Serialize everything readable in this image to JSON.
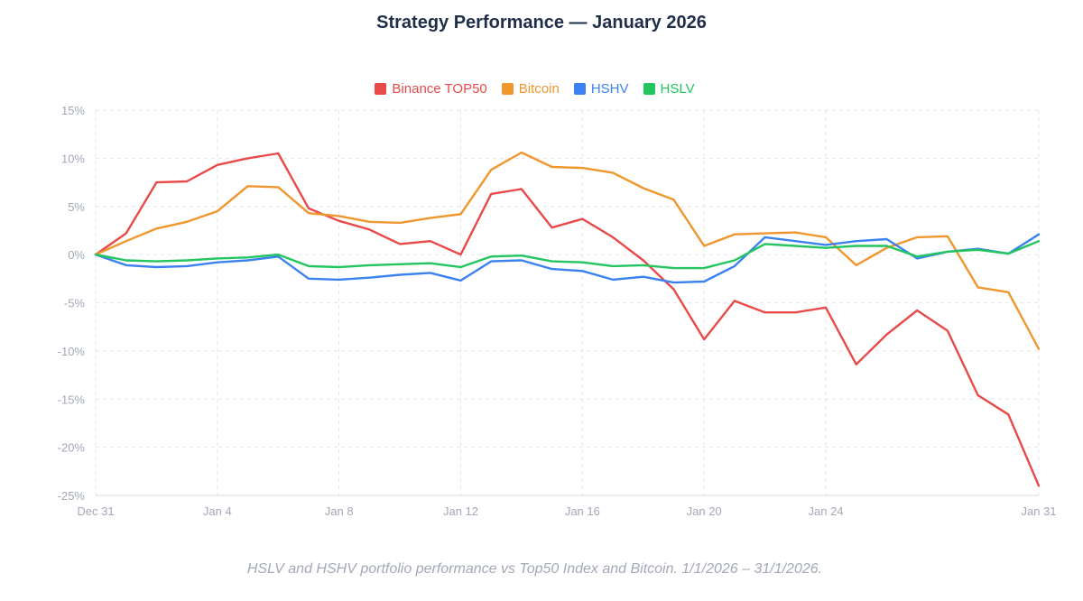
{
  "title": "Strategy Performance — January 2026",
  "caption": "HSLV and HSHV portfolio performance vs Top50 Index and Bitcoin. 1/1/2026 – 31/1/2026.",
  "chart_data": {
    "type": "line",
    "title": "Strategy Performance — January 2026",
    "xlabel": "",
    "ylabel": "",
    "x": [
      "Dec 31",
      "Jan 1",
      "Jan 2",
      "Jan 3",
      "Jan 4",
      "Jan 5",
      "Jan 6",
      "Jan 7",
      "Jan 8",
      "Jan 9",
      "Jan 10",
      "Jan 11",
      "Jan 12",
      "Jan 13",
      "Jan 14",
      "Jan 15",
      "Jan 16",
      "Jan 17",
      "Jan 18",
      "Jan 19",
      "Jan 20",
      "Jan 21",
      "Jan 22",
      "Jan 23",
      "Jan 24",
      "Jan 25",
      "Jan 26",
      "Jan 27",
      "Jan 28",
      "Jan 29",
      "Jan 30",
      "Jan 31"
    ],
    "x_ticks": [
      "Dec 31",
      "Jan 4",
      "Jan 8",
      "Jan 12",
      "Jan 16",
      "Jan 20",
      "Jan 24",
      "Jan 31"
    ],
    "y_ticks": [
      15,
      10,
      5,
      0,
      -5,
      -10,
      -15,
      -20,
      -25
    ],
    "y_tick_labels": [
      "15%",
      "10%",
      "5%",
      "0%",
      "-5%",
      "-10%",
      "-15%",
      "-20%",
      "-25%"
    ],
    "ylim": [
      -25,
      15
    ],
    "grid": true,
    "legend_position": "top-center",
    "series": [
      {
        "name": "Binance TOP50",
        "color": "#e84a4a",
        "values": [
          0,
          2.2,
          7.5,
          7.6,
          9.3,
          10.0,
          10.5,
          4.8,
          3.5,
          2.6,
          1.1,
          1.4,
          0.0,
          6.3,
          6.8,
          2.8,
          3.7,
          1.8,
          -0.6,
          -3.6,
          -8.8,
          -4.8,
          -6.0,
          -6.0,
          -5.5,
          -11.4,
          -8.3,
          -5.8,
          -7.9,
          -14.6,
          -16.6,
          -24.0
        ]
      },
      {
        "name": "Bitcoin",
        "color": "#f0962e",
        "values": [
          0,
          1.4,
          2.7,
          3.4,
          4.5,
          7.1,
          7.0,
          4.3,
          4.0,
          3.4,
          3.3,
          3.8,
          4.2,
          8.8,
          10.6,
          9.1,
          9.0,
          8.5,
          6.9,
          5.7,
          0.9,
          2.1,
          2.2,
          2.3,
          1.8,
          -1.1,
          0.7,
          1.8,
          1.9,
          -3.4,
          -3.9,
          -9.8
        ]
      },
      {
        "name": "HSHV",
        "color": "#3b82f0",
        "values": [
          0,
          -1.1,
          -1.3,
          -1.2,
          -0.8,
          -0.6,
          -0.2,
          -2.5,
          -2.6,
          -2.4,
          -2.1,
          -1.9,
          -2.7,
          -0.7,
          -0.6,
          -1.5,
          -1.7,
          -2.6,
          -2.3,
          -2.9,
          -2.8,
          -1.2,
          1.8,
          1.4,
          1.0,
          1.4,
          1.6,
          -0.4,
          0.3,
          0.6,
          0.1,
          2.1
        ]
      },
      {
        "name": "HSLV",
        "color": "#22c55e",
        "values": [
          0,
          -0.6,
          -0.7,
          -0.6,
          -0.4,
          -0.3,
          0.0,
          -1.2,
          -1.3,
          -1.1,
          -1.0,
          -0.9,
          -1.3,
          -0.2,
          -0.1,
          -0.7,
          -0.8,
          -1.2,
          -1.1,
          -1.4,
          -1.4,
          -0.6,
          1.1,
          0.9,
          0.7,
          0.9,
          0.9,
          -0.2,
          0.3,
          0.5,
          0.1,
          1.4
        ]
      }
    ]
  }
}
